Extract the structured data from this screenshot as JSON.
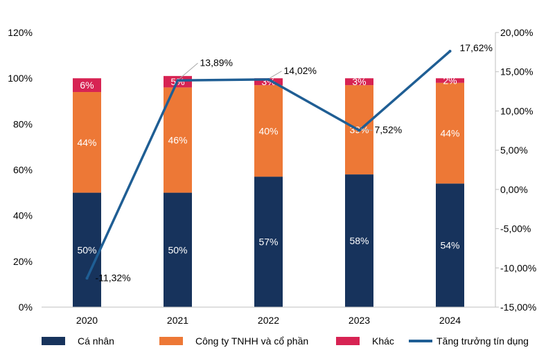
{
  "chart_data": {
    "type": "bar+line",
    "categories": [
      "2020",
      "2021",
      "2022",
      "2023",
      "2024"
    ],
    "y_left": {
      "min": 0,
      "max": 120,
      "step": 20,
      "ticks": [
        "0%",
        "20%",
        "40%",
        "60%",
        "80%",
        "100%",
        "120%"
      ]
    },
    "y_right": {
      "min": -15,
      "max": 20,
      "step": 5,
      "ticks": [
        "-15,00%",
        "-10,00%",
        "-5,00%",
        "0,00%",
        "5,00%",
        "10,00%",
        "15,00%",
        "20,00%"
      ]
    },
    "series": [
      {
        "name": "Cá nhân",
        "color": "#17335c",
        "values": [
          50,
          50,
          57,
          58,
          54
        ],
        "labels": [
          "50%",
          "50%",
          "57%",
          "58%",
          "54%"
        ],
        "label_color": "#ffffff"
      },
      {
        "name": "Công ty TNHH và cổ phần",
        "color": "#ed7836",
        "values": [
          44,
          46,
          40,
          39,
          44
        ],
        "labels": [
          "44%",
          "46%",
          "40%",
          "39%",
          "44%"
        ],
        "label_color": "#ffffff"
      },
      {
        "name": "Khác",
        "color": "#d72353",
        "values": [
          6,
          5,
          3,
          3,
          2
        ],
        "labels": [
          "6%",
          "5%",
          "3%",
          "3%",
          "2%"
        ],
        "label_color": "#ffffff"
      }
    ],
    "line": {
      "name": "Tăng trưởng tín dụng",
      "color": "#1f5e94",
      "axis": "right",
      "values": [
        -11.32,
        13.89,
        14.02,
        7.52,
        17.62
      ],
      "labels": [
        "-11,32%",
        "13,89%",
        "14,02%",
        "7,52%",
        "17,62%"
      ]
    }
  },
  "legend": {
    "items": [
      "Cá nhân",
      "Công ty TNHH và cổ phần",
      "Khác",
      "Tăng trưởng tín dụng"
    ]
  }
}
